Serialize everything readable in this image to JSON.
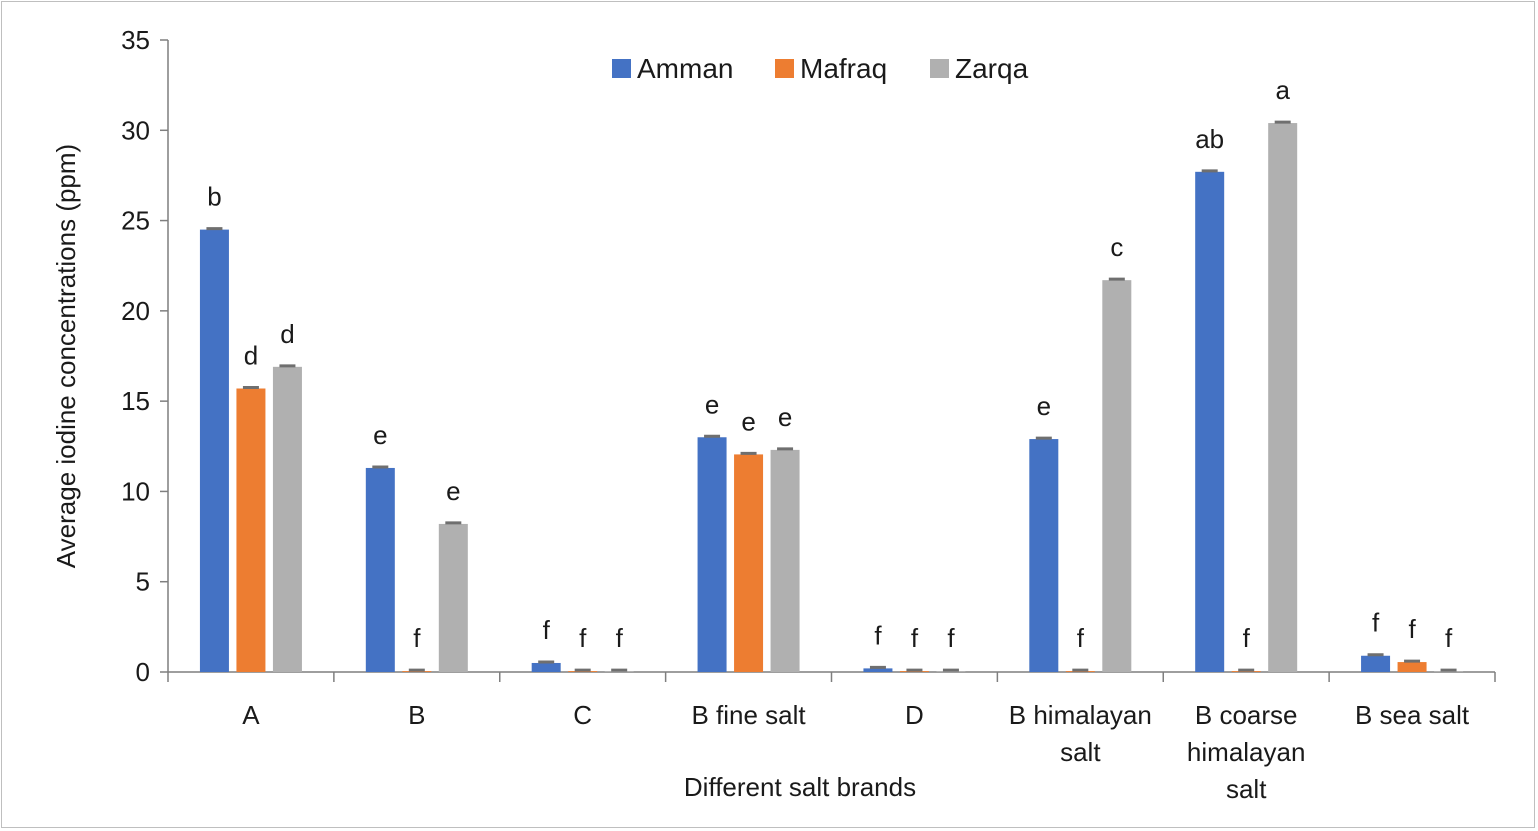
{
  "chart_data": {
    "type": "bar",
    "title": "",
    "xlabel": "Different salt brands",
    "ylabel": "Average iodine concentrations (ppm)",
    "ylim": [
      0,
      35
    ],
    "yticks": [
      "0",
      "5",
      "10",
      "15",
      "20",
      "25",
      "30",
      "35"
    ],
    "legend_position": "top-center",
    "grid": false,
    "categories": [
      [
        "A"
      ],
      [
        "B"
      ],
      [
        "C"
      ],
      [
        "B  fine salt"
      ],
      [
        "D"
      ],
      [
        "B himalayan",
        "salt"
      ],
      [
        "B coarse",
        "himalayan",
        "salt"
      ],
      [
        "B sea salt"
      ]
    ],
    "series": [
      {
        "name": "Amman",
        "color": "#4472c4",
        "values": [
          24.5,
          11.3,
          0.5,
          13.0,
          0.2,
          12.9,
          27.7,
          0.9
        ],
        "labels": [
          "b",
          "e",
          "f",
          "e",
          "f",
          "e",
          "ab",
          "f"
        ]
      },
      {
        "name": "Mafraq",
        "color": "#ed7d31",
        "values": [
          15.7,
          0.05,
          0.05,
          12.05,
          0.05,
          0.05,
          0.05,
          0.55
        ],
        "labels": [
          "d",
          "f",
          "f",
          "e",
          "f",
          "f",
          "f",
          "f"
        ]
      },
      {
        "name": "Zarqa",
        "color": "#b0b0b0",
        "values": [
          16.9,
          8.2,
          0.05,
          12.3,
          0.05,
          21.7,
          30.4,
          0.05
        ],
        "labels": [
          "d",
          "e",
          "f",
          "e",
          "f",
          "c",
          "a",
          "f"
        ]
      }
    ]
  }
}
